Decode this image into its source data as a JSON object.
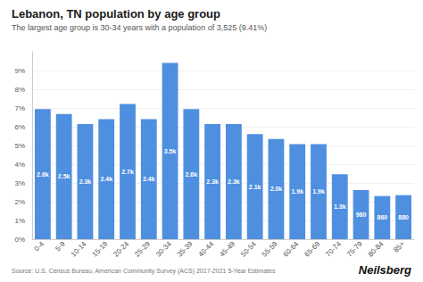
{
  "chart_data": {
    "type": "bar",
    "title": "Lebanon, TN population by age group",
    "subtitle": "The largest age group is 30-34 years with a population of 3,525 (9.41%)",
    "source": "Source: U.S. Census Bureau, American Community Survey (ACS) 2017-2021 5-Year Estimates",
    "branding": "Neilsberg",
    "categories": [
      "0-4",
      "5-9",
      "10-14",
      "15-19",
      "20-24",
      "25-29",
      "30-34",
      "35-39",
      "40-44",
      "45-49",
      "50-54",
      "55-59",
      "60-64",
      "65-69",
      "70-74",
      "75-79",
      "80-84",
      "85+"
    ],
    "values": [
      0.0694,
      0.0668,
      0.0614,
      0.0641,
      0.0721,
      0.0641,
      0.0941,
      0.0694,
      0.0614,
      0.0614,
      0.0561,
      0.0534,
      0.0507,
      0.0507,
      0.0347,
      0.0262,
      0.023,
      0.0235
    ],
    "annotations": [
      "2.6k",
      "2.5k",
      "2.3k",
      "2.4k",
      "2.7k",
      "2.4k",
      "3.5k",
      "2.6k",
      "2.3k",
      "2.3k",
      "2.1k",
      "2.0k",
      "1.9k",
      "1.9k",
      "1.3k",
      "980",
      "860",
      "880"
    ],
    "color": "#4f8fe0",
    "ylim": [
      0,
      0.1
    ],
    "yticks": [
      {
        "value": 0,
        "label": "0%"
      },
      {
        "value": 0.01,
        "label": "1%"
      },
      {
        "value": 0.02,
        "label": "2%"
      },
      {
        "value": 0.03,
        "label": "3%"
      },
      {
        "value": 0.04,
        "label": "4%"
      },
      {
        "value": 0.05,
        "label": "5%"
      },
      {
        "value": 0.06,
        "label": "6%"
      },
      {
        "value": 0.07,
        "label": "7%"
      },
      {
        "value": 0.08,
        "label": "8%"
      },
      {
        "value": 0.09,
        "label": "9%"
      }
    ],
    "grid": true
  }
}
